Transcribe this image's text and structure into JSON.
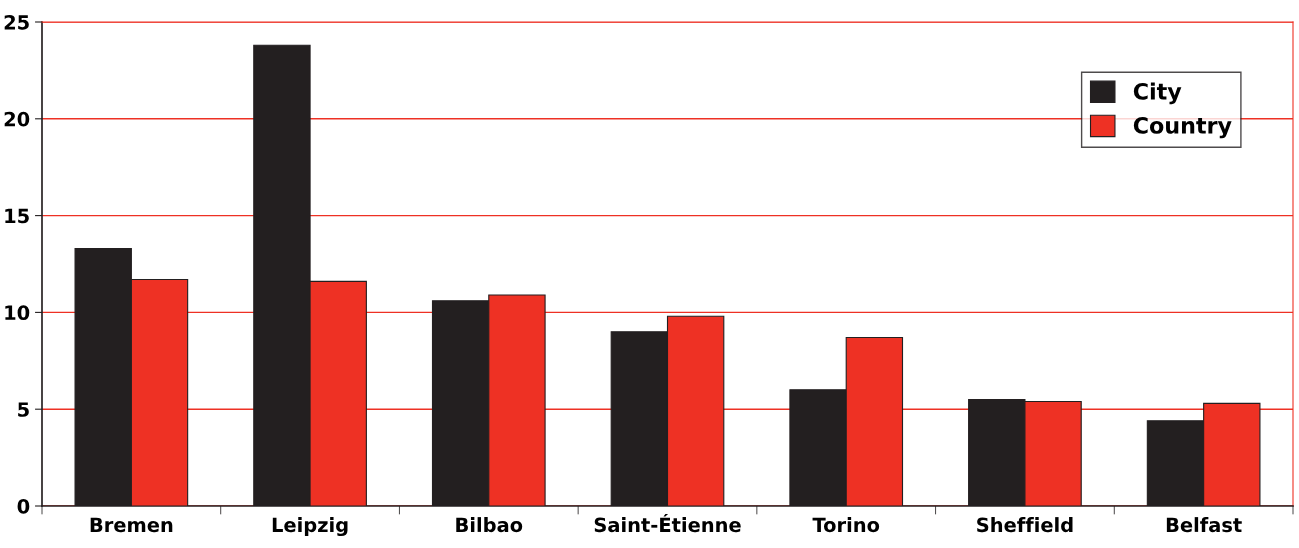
{
  "chart_data": {
    "type": "bar",
    "categories": [
      "Bremen",
      "Leipzig",
      "Bilbao",
      "Saint-Étienne",
      "Torino",
      "Sheffield",
      "Belfast"
    ],
    "series": [
      {
        "name": "City",
        "color": "#231f20",
        "values": [
          13.3,
          23.8,
          10.6,
          9.0,
          6.0,
          5.5,
          4.4
        ]
      },
      {
        "name": "Country",
        "color": "#ee3124",
        "values": [
          11.7,
          11.6,
          10.9,
          9.8,
          8.7,
          5.4,
          5.3
        ]
      }
    ],
    "ylim": [
      0,
      25
    ],
    "yticks": [
      0,
      5,
      10,
      15,
      20,
      25
    ],
    "grid": "y",
    "legend": "top right"
  }
}
